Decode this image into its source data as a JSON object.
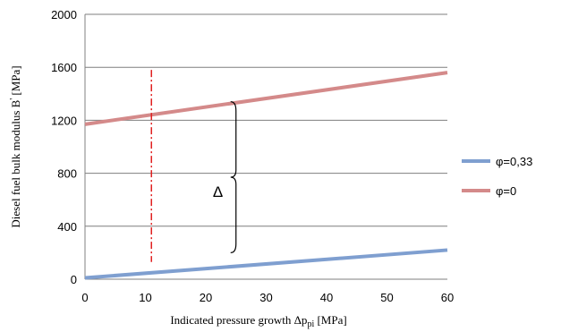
{
  "chart_data": {
    "type": "line",
    "xlabel_main": "Indicated pressure growth Δp",
    "xlabel_sub": "pi",
    "xlabel_unit": " [MPa]",
    "ylabel_main": "Diesel fuel bulk modulus B",
    "ylabel_prime": "'",
    "ylabel_unit": " [MPa]",
    "xlim": [
      0,
      60
    ],
    "ylim": [
      0,
      2000
    ],
    "x_ticks": [
      0,
      10,
      20,
      30,
      40,
      50,
      60
    ],
    "y_ticks": [
      0,
      400,
      800,
      1200,
      1600,
      2000
    ],
    "grid": "horizontal",
    "legend_position": "right",
    "series": [
      {
        "name": "φ=0,33",
        "color": "#7f9fd0",
        "x": [
          0,
          60
        ],
        "y": [
          10,
          220
        ]
      },
      {
        "name": "φ=0",
        "color": "#d48a8a",
        "x": [
          0,
          60
        ],
        "y": [
          1170,
          1560
        ]
      }
    ],
    "marker_line": {
      "x": 11,
      "y_from": 130,
      "y_to": 1580,
      "color": "#e02020",
      "style": "dash-dot"
    },
    "brace": {
      "x": 25,
      "y_from": 200,
      "y_to": 1340
    },
    "annotation": {
      "text": "Δ",
      "x": 22,
      "y": 620
    }
  }
}
